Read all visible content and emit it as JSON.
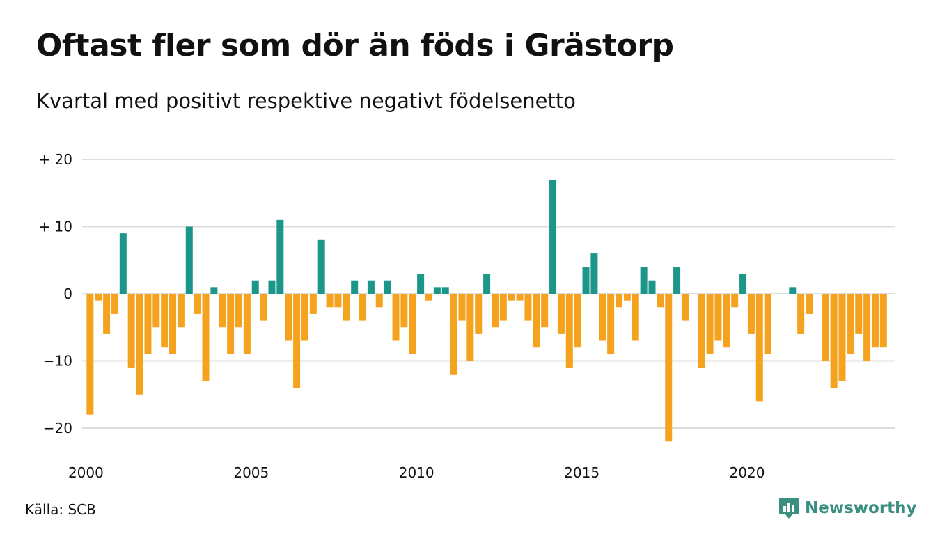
{
  "header": {
    "title": "Oftast fler som dör än föds i Grästorp",
    "subtitle": "Kvartal med positivt respektive negativt födelsenetto"
  },
  "footer": {
    "source": "Källa: SCB",
    "brand": "Newsworthy",
    "brand_icon": "bar-chart-logo-icon"
  },
  "colors": {
    "positive": "#1b9688",
    "negative": "#f5a21f",
    "grid": "#dddddd",
    "brand": "#3a8f80"
  },
  "chart_data": {
    "type": "bar",
    "x_start": "2000 Q1",
    "quarters_per_year": 4,
    "ylim": [
      -24,
      20
    ],
    "yticks": [
      {
        "value": 20,
        "label": "+ 20"
      },
      {
        "value": 10,
        "label": "+ 10"
      },
      {
        "value": 0,
        "label": "0"
      },
      {
        "value": -10,
        "label": "−10"
      },
      {
        "value": -20,
        "label": "−20"
      }
    ],
    "xticks": [
      "2000",
      "2005",
      "2010",
      "2015",
      "2020"
    ],
    "grid": true,
    "values": [
      -18,
      -1,
      -6,
      -3,
      9,
      -11,
      -15,
      -9,
      -5,
      -8,
      -9,
      -5,
      10,
      -3,
      -13,
      1,
      -5,
      -9,
      -5,
      -9,
      2,
      -4,
      2,
      11,
      -7,
      -14,
      -7,
      -3,
      8,
      -2,
      -2,
      -4,
      2,
      -4,
      2,
      -2,
      2,
      -7,
      -5,
      -9,
      3,
      -1,
      1,
      1,
      -12,
      -4,
      -10,
      -6,
      3,
      -5,
      -4,
      -1,
      -1,
      -4,
      -8,
      -5,
      17,
      -6,
      -11,
      -8,
      4,
      6,
      -7,
      -9,
      -2,
      -1,
      -7,
      4,
      2,
      -2,
      -22,
      4,
      -4,
      0,
      -11,
      -9,
      -7,
      -8,
      -2,
      3,
      -6,
      -16,
      -9,
      0,
      0,
      1,
      -6,
      -3,
      0,
      -10,
      -14,
      -13,
      -9,
      -6,
      -10,
      -8,
      -8
    ]
  }
}
